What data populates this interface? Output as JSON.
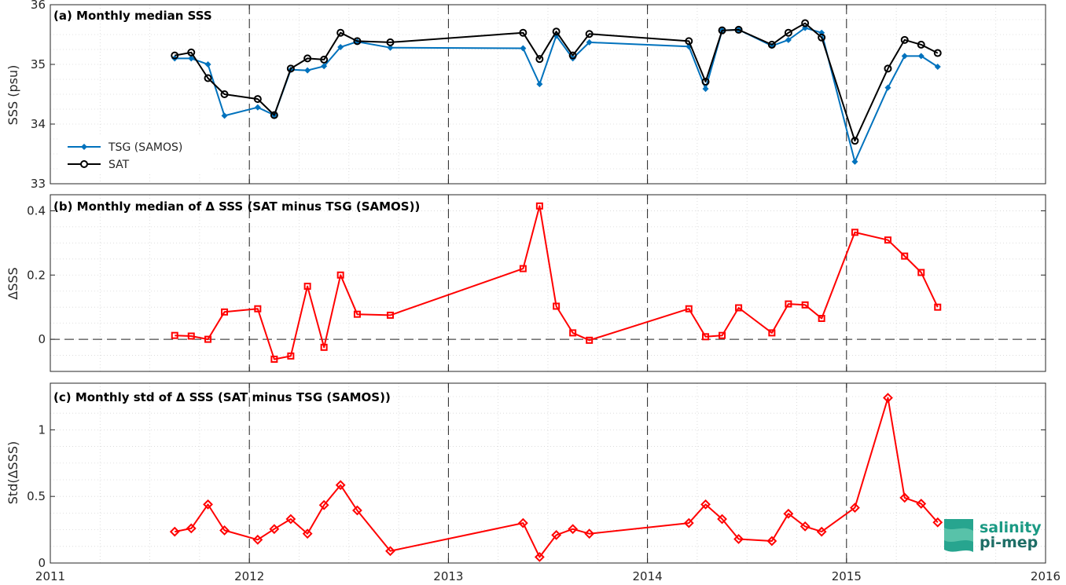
{
  "chart_data": [
    {
      "type": "line",
      "title": "(a) Monthly median SSS",
      "ylabel": "SSS (psu)",
      "xlim": [
        2011,
        2016
      ],
      "ylim": [
        33,
        36
      ],
      "yticks": [
        "33",
        "34",
        "35",
        "36"
      ],
      "grid": true,
      "legend": "bottom-left",
      "series": [
        {
          "name": "TSG (SAMOS)",
          "color": "#0072bd",
          "marker": "diamond",
          "x": [
            2011.625,
            2011.708,
            2011.792,
            2011.875,
            2012.042,
            2012.125,
            2012.208,
            2012.292,
            2012.375,
            2012.458,
            2012.542,
            2012.708,
            2013.375,
            2013.458,
            2013.542,
            2013.625,
            2013.708,
            2014.208,
            2014.292,
            2014.375,
            2014.458,
            2014.625,
            2014.708,
            2014.792,
            2014.875,
            2015.042,
            2015.208,
            2015.292,
            2015.375,
            2015.458
          ],
          "values": [
            35.1,
            35.1,
            35.0,
            34.14,
            34.28,
            34.15,
            34.91,
            34.9,
            34.97,
            35.29,
            35.38,
            35.28,
            35.27,
            34.67,
            35.48,
            35.1,
            35.37,
            35.3,
            34.59,
            35.57,
            35.58,
            35.31,
            35.41,
            35.61,
            35.53,
            33.37,
            34.61,
            35.14,
            35.14,
            34.96
          ]
        },
        {
          "name": "SAT",
          "color": "#000000",
          "marker": "circle",
          "x": [
            2011.625,
            2011.708,
            2011.792,
            2011.875,
            2012.042,
            2012.125,
            2012.208,
            2012.292,
            2012.375,
            2012.458,
            2012.542,
            2012.708,
            2013.375,
            2013.458,
            2013.542,
            2013.625,
            2013.708,
            2014.208,
            2014.292,
            2014.375,
            2014.458,
            2014.625,
            2014.708,
            2014.792,
            2014.875,
            2015.042,
            2015.208,
            2015.292,
            2015.375,
            2015.458
          ],
          "values": [
            35.15,
            35.2,
            34.77,
            34.5,
            34.42,
            34.15,
            34.93,
            35.1,
            35.08,
            35.53,
            35.39,
            35.37,
            35.53,
            35.09,
            35.55,
            35.15,
            35.51,
            35.39,
            34.71,
            35.57,
            35.58,
            35.33,
            35.53,
            35.69,
            35.45,
            33.72,
            34.93,
            35.41,
            35.33,
            35.19
          ]
        }
      ]
    },
    {
      "type": "line",
      "title": "(b) Monthly median of Δ SSS (SAT minus TSG (SAMOS))",
      "ylabel": "ΔSSS",
      "xlim": [
        2011,
        2016
      ],
      "ylim": [
        -0.1,
        0.45
      ],
      "yticks": [
        "0",
        "0.2",
        "0.4"
      ],
      "grid": true,
      "reference_line": 0,
      "series": [
        {
          "color": "#ff0000",
          "marker": "square",
          "x": [
            2011.625,
            2011.708,
            2011.792,
            2011.875,
            2012.042,
            2012.125,
            2012.208,
            2012.292,
            2012.375,
            2012.458,
            2012.542,
            2012.708,
            2013.375,
            2013.458,
            2013.542,
            2013.625,
            2013.708,
            2014.208,
            2014.292,
            2014.375,
            2014.458,
            2014.625,
            2014.708,
            2014.792,
            2014.875,
            2015.042,
            2015.208,
            2015.292,
            2015.375,
            2015.458
          ],
          "values": [
            0.012,
            0.01,
            0.0,
            0.085,
            0.095,
            -0.062,
            -0.052,
            0.165,
            -0.025,
            0.2,
            0.078,
            0.075,
            0.22,
            0.415,
            0.103,
            0.02,
            -0.003,
            0.095,
            0.008,
            0.012,
            0.098,
            0.02,
            0.11,
            0.107,
            0.065,
            0.333,
            0.309,
            0.259,
            0.208,
            0.1
          ]
        }
      ]
    },
    {
      "type": "line",
      "title": "(c) Monthly std of Δ SSS (SAT minus TSG (SAMOS))",
      "ylabel": "Std(ΔSSS)",
      "xlim": [
        2011,
        2016
      ],
      "ylim": [
        0,
        1.35
      ],
      "yticks": [
        "0",
        "0.5",
        "1"
      ],
      "xticks": [
        "2011",
        "2012",
        "2013",
        "2014",
        "2015",
        "2016"
      ],
      "grid": true,
      "series": [
        {
          "color": "#ff0000",
          "marker": "diamond",
          "x": [
            2011.625,
            2011.708,
            2011.792,
            2011.875,
            2012.042,
            2012.125,
            2012.208,
            2012.292,
            2012.375,
            2012.458,
            2012.542,
            2012.708,
            2013.375,
            2013.458,
            2013.542,
            2013.625,
            2013.708,
            2014.208,
            2014.292,
            2014.375,
            2014.458,
            2014.625,
            2014.708,
            2014.792,
            2014.875,
            2015.042,
            2015.208,
            2015.292,
            2015.375,
            2015.458
          ],
          "values": [
            0.235,
            0.26,
            0.44,
            0.245,
            0.175,
            0.255,
            0.33,
            0.22,
            0.435,
            0.585,
            0.395,
            0.09,
            0.3,
            0.045,
            0.21,
            0.255,
            0.22,
            0.3,
            0.44,
            0.33,
            0.18,
            0.165,
            0.37,
            0.275,
            0.235,
            0.415,
            1.24,
            0.49,
            0.445,
            0.305
          ]
        }
      ]
    }
  ],
  "year_separators": [
    2012,
    2013,
    2014,
    2015
  ],
  "logo": {
    "line1": "salinity",
    "line2": "pi-mep"
  }
}
